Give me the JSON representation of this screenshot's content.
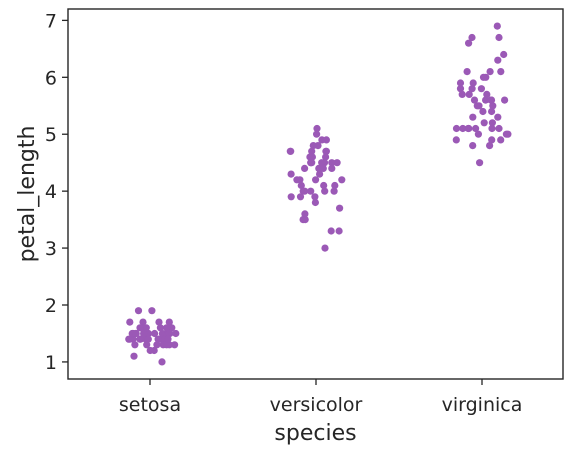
{
  "chart_data": {
    "type": "scatter",
    "subtype": "strip",
    "title": "",
    "xlabel": "species",
    "ylabel": "petal_length",
    "categories": [
      "setosa",
      "versicolor",
      "virginica"
    ],
    "ylim": [
      0.7,
      7.2
    ],
    "yticks": [
      1,
      2,
      3,
      4,
      5,
      6,
      7
    ],
    "grid": false,
    "legend": "none",
    "point_color": "#9b59b6",
    "series": [
      {
        "category": "setosa",
        "values": [
          1.4,
          1.4,
          1.3,
          1.5,
          1.4,
          1.7,
          1.4,
          1.5,
          1.4,
          1.5,
          1.5,
          1.6,
          1.4,
          1.1,
          1.2,
          1.5,
          1.3,
          1.4,
          1.7,
          1.5,
          1.7,
          1.5,
          1.0,
          1.7,
          1.9,
          1.6,
          1.6,
          1.5,
          1.4,
          1.6,
          1.6,
          1.5,
          1.5,
          1.4,
          1.5,
          1.2,
          1.3,
          1.4,
          1.3,
          1.5,
          1.3,
          1.3,
          1.3,
          1.6,
          1.9,
          1.4,
          1.6,
          1.4,
          1.5,
          1.4
        ]
      },
      {
        "category": "versicolor",
        "values": [
          4.7,
          4.5,
          4.9,
          4.0,
          4.6,
          4.5,
          4.7,
          3.3,
          4.6,
          3.9,
          3.5,
          4.2,
          4.0,
          4.7,
          3.6,
          4.4,
          4.5,
          4.1,
          4.5,
          3.9,
          4.8,
          4.0,
          4.9,
          4.7,
          4.3,
          4.4,
          4.8,
          5.0,
          4.5,
          3.5,
          3.8,
          3.7,
          3.9,
          5.1,
          4.5,
          4.5,
          4.7,
          4.4,
          4.1,
          4.0,
          4.4,
          4.6,
          4.0,
          3.3,
          4.2,
          4.2,
          4.2,
          4.3,
          3.0,
          4.1
        ]
      },
      {
        "category": "virginica",
        "values": [
          6.0,
          5.1,
          5.9,
          5.6,
          5.8,
          6.6,
          4.5,
          6.3,
          5.8,
          6.1,
          5.1,
          5.3,
          5.5,
          5.0,
          5.1,
          5.3,
          5.5,
          6.7,
          6.9,
          5.0,
          5.7,
          4.9,
          6.7,
          4.9,
          5.7,
          6.0,
          4.8,
          4.9,
          5.6,
          5.8,
          6.1,
          6.4,
          5.6,
          5.1,
          5.6,
          6.1,
          5.6,
          5.5,
          4.8,
          5.4,
          5.6,
          5.1,
          5.1,
          5.9,
          5.7,
          5.2,
          5.0,
          5.2,
          5.4,
          5.1
        ]
      }
    ]
  }
}
